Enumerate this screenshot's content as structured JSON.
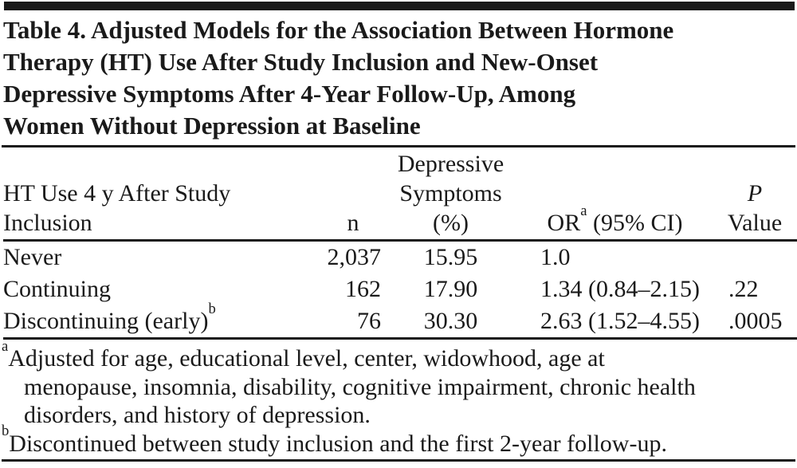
{
  "title": {
    "lines": [
      "Table 4. Adjusted Models for the Association Between Hormone",
      "Therapy (HT) Use After Study Inclusion and New-Onset",
      "Depressive Symptoms After 4-Year Follow-Up, Among",
      "Women Without Depression at Baseline"
    ]
  },
  "table": {
    "header": {
      "col1_lines": [
        "HT Use 4 y After Study",
        "Inclusion"
      ],
      "col2": "n",
      "col3_lines": [
        "Depressive",
        "Symptoms",
        "(%)"
      ],
      "col4": {
        "prefix": "OR",
        "sup": "a",
        "suffix": " (95% CI)"
      },
      "col5_lines": [
        "P",
        "Value"
      ]
    },
    "rows": [
      {
        "label": "Never",
        "label_sup": "",
        "n": "2,037",
        "pct": "15.95",
        "or_ci": "1.0",
        "p": ""
      },
      {
        "label": "Continuing",
        "label_sup": "",
        "n": "162",
        "pct": "17.90",
        "or_ci": "1.34 (0.84–2.15)",
        "p": ".22"
      },
      {
        "label": "Discontinuing (early)",
        "label_sup": "b",
        "n": "76",
        "pct": "30.30",
        "or_ci": "2.63 (1.52–4.55)",
        "p": ".0005"
      }
    ]
  },
  "footnotes": {
    "a": {
      "marker": "a",
      "line1": "Adjusted for age, educational level, center, widowhood, age at",
      "line2": "menopause, insomnia, disability, cognitive impairment, chronic health",
      "line3": "disorders, and history of depression."
    },
    "b": {
      "marker": "b",
      "line1": "Discontinued between study inclusion and the first 2-year follow-up."
    }
  },
  "colors": {
    "text": "#1a1a1a",
    "rule": "#1a1a1a",
    "background": "#ffffff"
  }
}
